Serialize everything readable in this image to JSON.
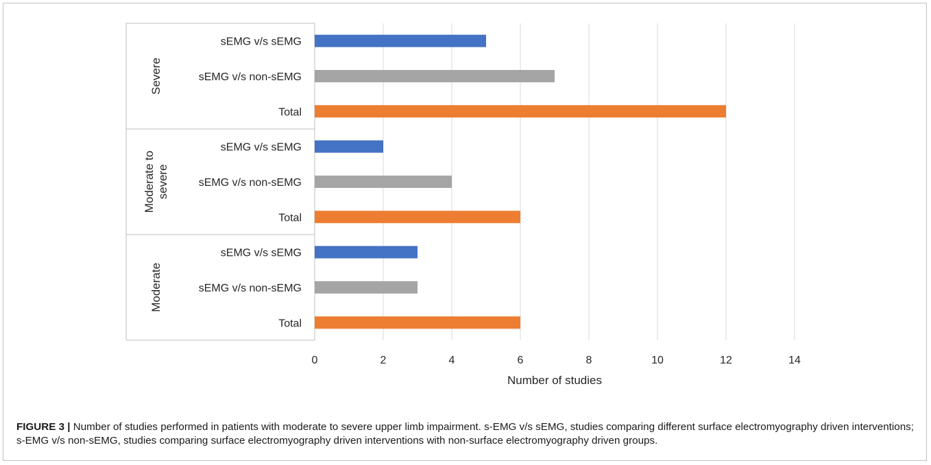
{
  "chart_data": {
    "type": "bar",
    "orientation": "horizontal",
    "xlabel": "Number of studies",
    "xlim": [
      0,
      14
    ],
    "xticks": [
      "0",
      "2",
      "4",
      "6",
      "8",
      "10",
      "12",
      "14"
    ],
    "grid": "vertical",
    "legend": "none",
    "groups": [
      {
        "name": "Severe",
        "name_lines": [
          "Severe"
        ],
        "bars": [
          {
            "label": "sEMG v/s sEMG",
            "value": 5,
            "color": "#4472c4"
          },
          {
            "label": "sEMG v/s non-sEMG",
            "value": 7,
            "color": "#a5a5a5"
          },
          {
            "label": "Total",
            "value": 12,
            "color": "#ed7d31"
          }
        ]
      },
      {
        "name": "Moderate to severe",
        "name_lines": [
          "Moderate to",
          "severe"
        ],
        "bars": [
          {
            "label": "sEMG v/s sEMG",
            "value": 2,
            "color": "#4472c4"
          },
          {
            "label": "sEMG v/s non-sEMG",
            "value": 4,
            "color": "#a5a5a5"
          },
          {
            "label": "Total",
            "value": 6,
            "color": "#ed7d31"
          }
        ]
      },
      {
        "name": "Moderate",
        "name_lines": [
          "Moderate"
        ],
        "bars": [
          {
            "label": "sEMG v/s sEMG",
            "value": 3,
            "color": "#4472c4"
          },
          {
            "label": "sEMG v/s non-sEMG",
            "value": 3,
            "color": "#a5a5a5"
          },
          {
            "label": "Total",
            "value": 6,
            "color": "#ed7d31"
          }
        ]
      }
    ]
  },
  "caption": {
    "figure_label": "FIGURE 3 |",
    "text": " Number of studies performed in patients with moderate to severe upper limb impairment. s-EMG v/s sEMG, studies comparing different surface electromyography driven interventions; s-EMG v/s non-sEMG, studies comparing surface electromyography driven interventions with non-surface electromyography driven groups."
  }
}
